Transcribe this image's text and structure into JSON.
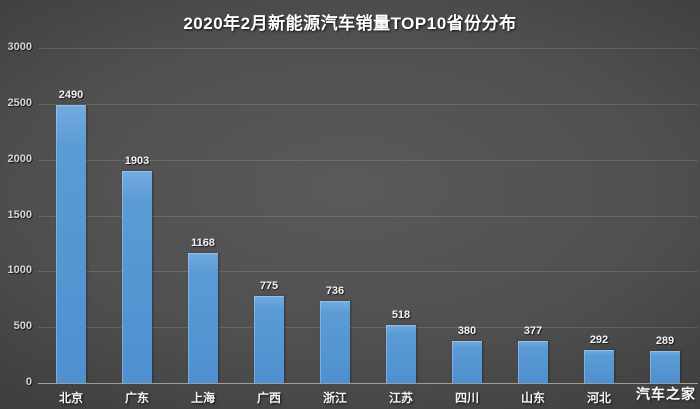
{
  "title": "2020年2月新能源汽车销量TOP10省份分布",
  "watermark": "汽车之家",
  "chart_data": {
    "type": "bar",
    "title": "2020年2月新能源汽车销量TOP10省份分布",
    "categories": [
      "北京",
      "广东",
      "上海",
      "广西",
      "浙江",
      "江苏",
      "四川",
      "山东",
      "河北",
      ""
    ],
    "values": [
      2490,
      1903,
      1168,
      775,
      736,
      518,
      380,
      377,
      292,
      289
    ],
    "xlabel": "",
    "ylabel": "",
    "ylim": [
      0,
      3000
    ],
    "yticks": [
      0,
      500,
      1000,
      1500,
      2000,
      2500,
      3000
    ],
    "grid": true,
    "legend": "none",
    "bar_color": "#5b9bd5",
    "background_color": "#3c3c3c",
    "text_color": "#f2f2f2"
  }
}
